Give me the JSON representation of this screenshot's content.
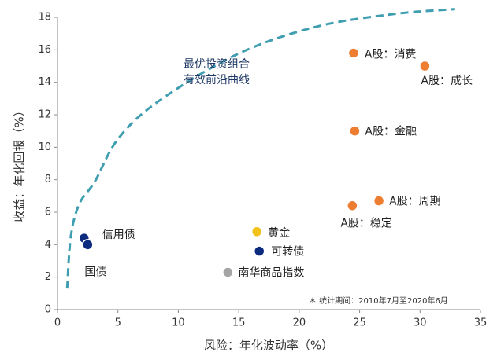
{
  "chart_data": {
    "type": "scatter",
    "xlabel": "风险：年化波动率（%）",
    "ylabel": "收益：年化回报（%）",
    "xlim": [
      0,
      35
    ],
    "xticks": [
      0,
      5,
      10,
      15,
      20,
      25,
      30,
      35
    ],
    "ylim": [
      0,
      18
    ],
    "yticks": [
      0,
      2,
      4,
      6,
      8,
      10,
      12,
      14,
      16,
      18
    ],
    "series": [
      {
        "name": "信用债",
        "color": "#0d2b7e",
        "x": [
          2.2
        ],
        "values": [
          4.4
        ]
      },
      {
        "name": "国债",
        "color": "#0d2b7e",
        "x": [
          2.5
        ],
        "values": [
          4.0
        ]
      },
      {
        "name": "黄金",
        "color": "#f2c21b",
        "x": [
          16.5
        ],
        "values": [
          4.8
        ]
      },
      {
        "name": "可转债",
        "color": "#0d2b7e",
        "x": [
          16.7
        ],
        "values": [
          3.6
        ]
      },
      {
        "name": "南华商品指数",
        "color": "#a5a5a5",
        "x": [
          14.1
        ],
        "values": [
          2.3
        ]
      },
      {
        "name": "A股：消费",
        "color": "#ed7d31",
        "x": [
          24.5
        ],
        "values": [
          15.8
        ]
      },
      {
        "name": "A股：成长",
        "color": "#ed7d31",
        "x": [
          30.4
        ],
        "values": [
          15.0
        ]
      },
      {
        "name": "A股：金融",
        "color": "#ed7d31",
        "x": [
          24.6
        ],
        "values": [
          11.0
        ]
      },
      {
        "name": "A股：周期",
        "color": "#ed7d31",
        "x": [
          26.6
        ],
        "values": [
          6.7
        ]
      },
      {
        "name": "A股：稳定",
        "color": "#ed7d31",
        "x": [
          24.4
        ],
        "values": [
          6.4
        ]
      }
    ],
    "frontier": {
      "label": [
        "最优投资组合",
        "有效前沿曲线"
      ],
      "color": "#3f9fb1",
      "x": [
        0.8,
        1.1,
        1.8,
        3.1,
        5,
        8.3,
        14.8,
        21.3,
        27.8,
        32.9
      ],
      "values": [
        1.3,
        4.5,
        6.5,
        7.9,
        10.5,
        12.8,
        15.7,
        17.4,
        18.2,
        18.5
      ]
    },
    "note": "＊ 统计期间：2010年7月至2020年6月"
  }
}
